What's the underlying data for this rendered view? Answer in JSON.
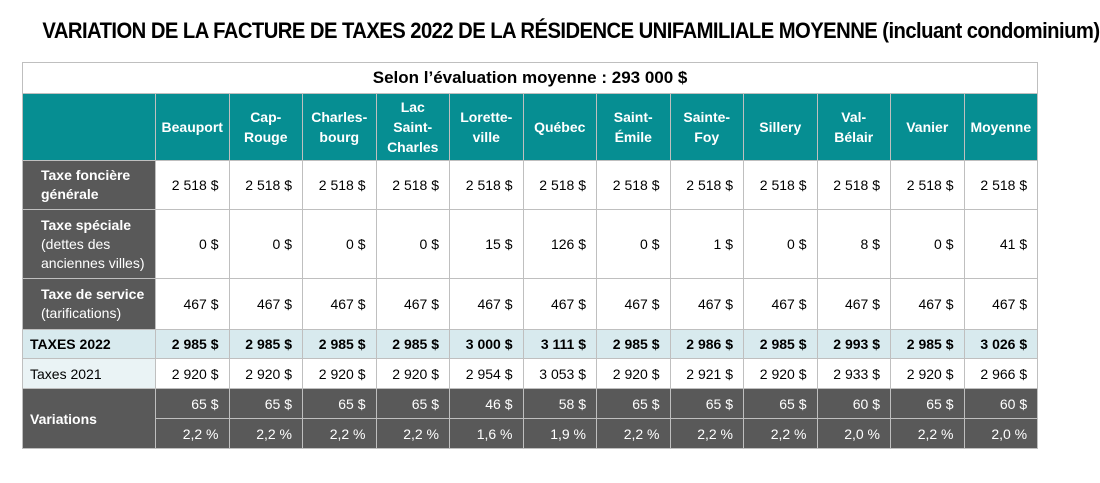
{
  "title": "VARIATION DE LA FACTURE DE TAXES 2022 DE LA RÉSIDENCE UNIFAMILIALE MOYENNE (incluant condominium)",
  "subtitle": "Selon l’évaluation moyenne : 293 000 $",
  "columns": [
    [
      "Beauport"
    ],
    [
      "Cap-",
      "Rouge"
    ],
    [
      "Charles-",
      "bourg"
    ],
    [
      "Lac",
      "Saint-",
      "Charles"
    ],
    [
      "Lorette-",
      "ville"
    ],
    [
      "Québec"
    ],
    [
      "Saint-",
      "Émile"
    ],
    [
      "Sainte-",
      "Foy"
    ],
    [
      "Sillery"
    ],
    [
      "Val-",
      "Bélair"
    ],
    [
      "Vanier"
    ],
    [
      "Moyenne"
    ]
  ],
  "rows": {
    "fonciere": {
      "label": "Taxe foncière générale",
      "values": [
        "2 518 $",
        "2 518 $",
        "2 518 $",
        "2 518 $",
        "2 518 $",
        "2 518 $",
        "2 518 $",
        "2 518 $",
        "2 518 $",
        "2 518 $",
        "2 518 $",
        "2 518 $"
      ]
    },
    "speciale": {
      "label": "Taxe spéciale",
      "sublabel": "(dettes des anciennes villes)",
      "values": [
        "0 $",
        "0 $",
        "0 $",
        "0 $",
        "15 $",
        "126 $",
        "0 $",
        "1 $",
        "0 $",
        "8 $",
        "0 $",
        "41 $"
      ]
    },
    "service": {
      "label": "Taxe de service",
      "sublabel": "(tarifications)",
      "values": [
        "467 $",
        "467 $",
        "467 $",
        "467 $",
        "467 $",
        "467 $",
        "467 $",
        "467 $",
        "467 $",
        "467 $",
        "467 $",
        "467 $"
      ]
    },
    "taxes2022": {
      "label": "TAXES 2022",
      "values": [
        "2 985 $",
        "2 985 $",
        "2 985 $",
        "2 985 $",
        "3 000 $",
        "3 111 $",
        "2 985 $",
        "2 986 $",
        "2 985 $",
        "2 993 $",
        "2 985 $",
        "3 026 $"
      ]
    },
    "taxes2021": {
      "label": "Taxes 2021",
      "values": [
        "2 920 $",
        "2 920 $",
        "2 920 $",
        "2 920 $",
        "2 954 $",
        "3 053 $",
        "2 920 $",
        "2 921 $",
        "2 920 $",
        "2 933 $",
        "2 920 $",
        "2 966 $"
      ]
    },
    "variations": {
      "label": "Variations",
      "amounts": [
        "65 $",
        "65 $",
        "65 $",
        "65 $",
        "46 $",
        "58 $",
        "65 $",
        "65 $",
        "65 $",
        "60 $",
        "65 $",
        "60 $"
      ],
      "percents": [
        "2,2 %",
        "2,2 %",
        "2,2 %",
        "2,2 %",
        "1,6 %",
        "1,9 %",
        "2,2 %",
        "2,2 %",
        "2,2 %",
        "2,0 %",
        "2,2 %",
        "2,0 %"
      ]
    }
  },
  "colors": {
    "header": "#068e92",
    "label": "#595959",
    "total": "#d8eaee"
  }
}
